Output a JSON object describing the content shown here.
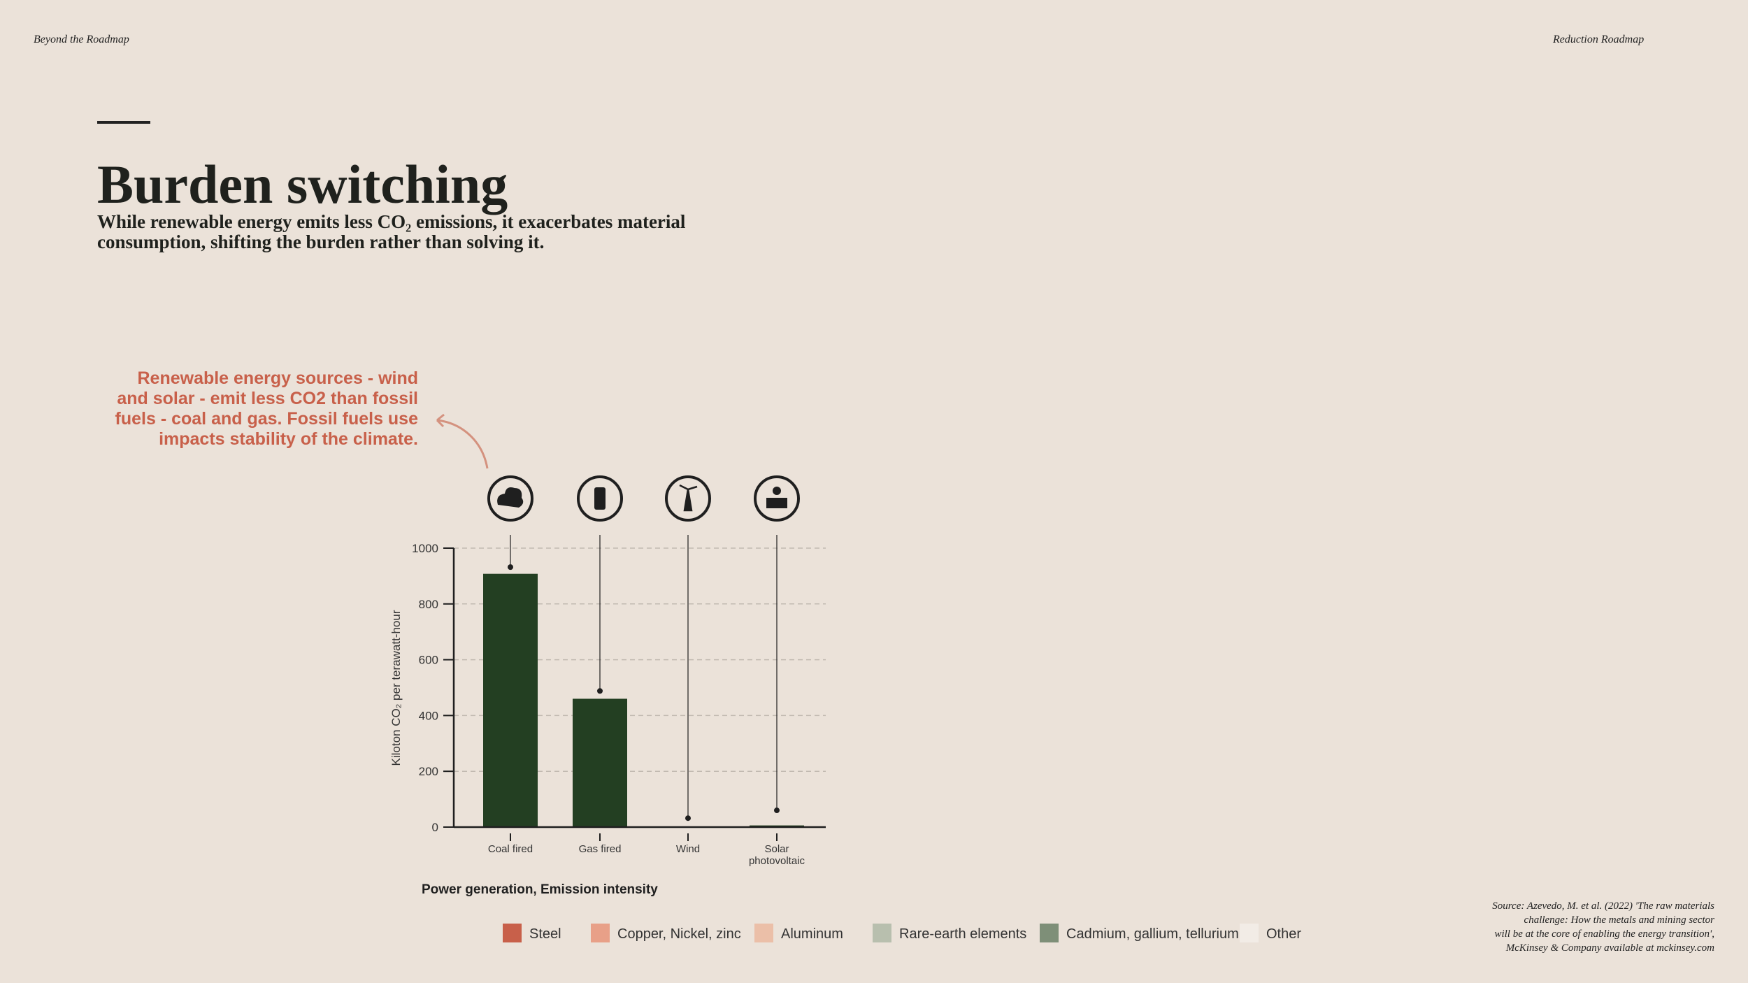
{
  "header": {
    "left": "Beyond the Roadmap",
    "right": "Reduction Roadmap"
  },
  "title": "Burden switching",
  "subtitle": [
    "While renewable energy emits less CO₂ emissions, it exacerbates material",
    "consumption, shifting the burden rather than solving it."
  ],
  "annotation": [
    "Renewable energy sources - wind",
    "and solar - emit less CO2 than fossil",
    "fuels - coal and gas. Fossil fuels use",
    "impacts stability of the climate."
  ],
  "source": [
    "Source: Azevedo, M. et al. (2022) 'The raw materials",
    "challenge: How the metals and mining sector",
    "will be at the core of enabling the energy transition',",
    "McKinsey & Company available at mckinsey.com"
  ],
  "chart_data": {
    "type": "bar",
    "title": "Power generation, Emission intensity",
    "y_label": "Kiloton CO₂ per terawatt-hour",
    "categories": [
      "Coal fired",
      "Gas fired",
      "Wind",
      "Solar photovoltaic"
    ],
    "series": [
      {
        "type": "bar",
        "color": "#233f22",
        "values": [
          908,
          460,
          2,
          6
        ]
      },
      {
        "type": "dot",
        "color": "#1f1f1f",
        "values": [
          932,
          488,
          32,
          60
        ]
      }
    ],
    "ylim": [
      0,
      1000
    ],
    "yticks": [
      0,
      200,
      400,
      600,
      800,
      1000
    ],
    "grid": true,
    "legend": [
      {
        "name": "Steel",
        "color": "#c8604a"
      },
      {
        "name": "Copper, Nickel, zinc",
        "color": "#e8a088"
      },
      {
        "name": "Aluminum",
        "color": "#ebbfa8"
      },
      {
        "name": "Rare-earth elements",
        "color": "#b8bfae"
      },
      {
        "name": "Cadmium, gallium, tellurium",
        "color": "#7e8f78"
      },
      {
        "name": "Other",
        "color": "#f2ece6"
      }
    ]
  }
}
